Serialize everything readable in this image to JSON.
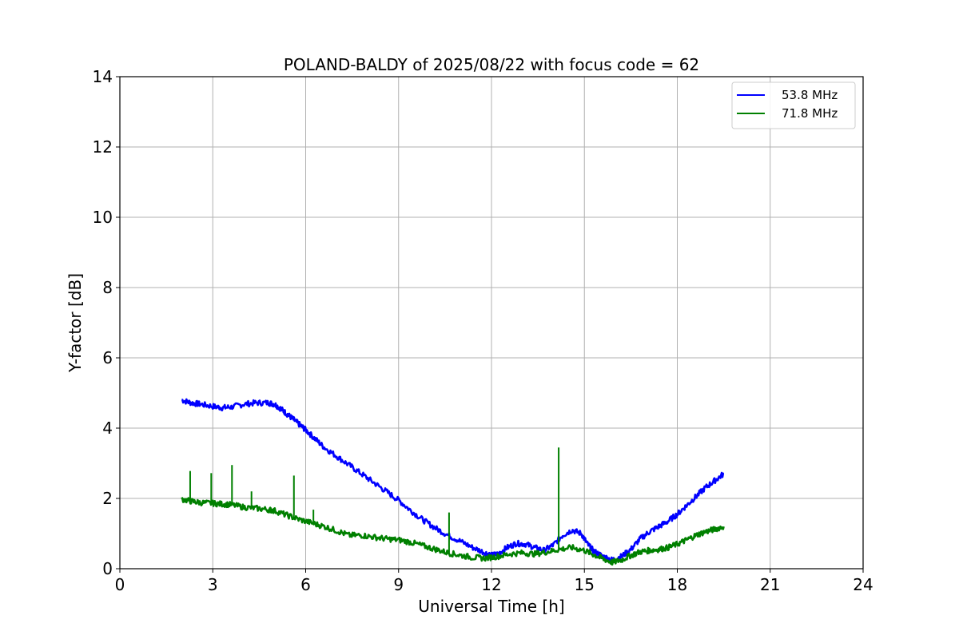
{
  "chart_data": {
    "type": "line",
    "title": "POLAND-BALDY of 2025/08/22 with focus code = 62",
    "xlabel": "Universal Time [h]",
    "ylabel": "Y-factor [dB]",
    "xlim": [
      0,
      24
    ],
    "ylim": [
      0,
      14
    ],
    "xticks": [
      0,
      3,
      6,
      9,
      12,
      15,
      18,
      21,
      24
    ],
    "yticks": [
      0,
      2,
      4,
      6,
      8,
      10,
      12,
      14
    ],
    "grid": true,
    "legend_position": "top-right",
    "series": [
      {
        "name": "53.8 MHz",
        "color": "#0000ff",
        "x": [
          2.0,
          2.3,
          2.6,
          3.0,
          3.3,
          3.6,
          4.0,
          4.4,
          4.8,
          5.0,
          5.2,
          5.4,
          5.6,
          5.8,
          6.0,
          6.3,
          6.6,
          7.0,
          7.4,
          7.8,
          8.2,
          8.6,
          9.0,
          9.4,
          9.8,
          10.2,
          10.6,
          11.0,
          11.4,
          11.8,
          12.0,
          12.2,
          12.5,
          12.8,
          13.1,
          13.4,
          13.7,
          14.0,
          14.3,
          14.6,
          14.9,
          15.1,
          15.3,
          15.6,
          15.9,
          16.2,
          16.5,
          16.8,
          17.1,
          17.4,
          17.7,
          18.0,
          18.3,
          18.6,
          18.9,
          19.2,
          19.5
        ],
        "y": [
          4.8,
          4.72,
          4.68,
          4.62,
          4.58,
          4.6,
          4.68,
          4.72,
          4.72,
          4.68,
          4.55,
          4.4,
          4.25,
          4.1,
          3.95,
          3.7,
          3.45,
          3.2,
          2.95,
          2.7,
          2.45,
          2.2,
          1.95,
          1.65,
          1.38,
          1.15,
          0.95,
          0.78,
          0.6,
          0.45,
          0.38,
          0.42,
          0.6,
          0.72,
          0.7,
          0.6,
          0.52,
          0.68,
          0.95,
          1.1,
          1.0,
          0.7,
          0.5,
          0.35,
          0.25,
          0.35,
          0.55,
          0.85,
          1.05,
          1.2,
          1.35,
          1.55,
          1.8,
          2.05,
          2.3,
          2.5,
          2.7
        ]
      },
      {
        "name": "71.8 MHz",
        "color": "#008000",
        "x": [
          2.0,
          2.3,
          2.6,
          3.0,
          3.3,
          3.6,
          4.0,
          4.4,
          4.8,
          5.0,
          5.4,
          5.8,
          6.2,
          6.6,
          7.0,
          7.4,
          7.8,
          8.2,
          8.6,
          9.0,
          9.4,
          9.8,
          10.2,
          10.6,
          11.0,
          11.4,
          11.8,
          12.2,
          12.6,
          13.0,
          13.4,
          13.8,
          14.2,
          14.6,
          15.0,
          15.3,
          15.6,
          15.9,
          16.2,
          16.5,
          16.8,
          17.1,
          17.4,
          17.7,
          18.0,
          18.3,
          18.6,
          18.9,
          19.2,
          19.5
        ],
        "y": [
          1.98,
          1.92,
          1.88,
          1.86,
          1.84,
          1.82,
          1.75,
          1.72,
          1.68,
          1.65,
          1.52,
          1.4,
          1.3,
          1.2,
          1.08,
          0.95,
          0.95,
          0.9,
          0.85,
          0.82,
          0.75,
          0.65,
          0.55,
          0.45,
          0.38,
          0.32,
          0.3,
          0.35,
          0.42,
          0.45,
          0.42,
          0.48,
          0.55,
          0.6,
          0.52,
          0.4,
          0.28,
          0.18,
          0.25,
          0.38,
          0.48,
          0.52,
          0.55,
          0.6,
          0.7,
          0.82,
          0.95,
          1.05,
          1.12,
          1.2
        ]
      }
    ],
    "spikes": [
      {
        "series": "71.8 MHz",
        "x": 2.27,
        "y": 2.78
      },
      {
        "series": "71.8 MHz",
        "x": 2.95,
        "y": 2.72
      },
      {
        "series": "71.8 MHz",
        "x": 3.62,
        "y": 2.95
      },
      {
        "series": "71.8 MHz",
        "x": 4.25,
        "y": 2.2
      },
      {
        "series": "71.8 MHz",
        "x": 5.62,
        "y": 2.65
      },
      {
        "series": "71.8 MHz",
        "x": 6.25,
        "y": 1.68
      },
      {
        "series": "71.8 MHz",
        "x": 10.63,
        "y": 1.6
      },
      {
        "series": "71.8 MHz",
        "x": 14.17,
        "y": 3.45
      }
    ]
  }
}
